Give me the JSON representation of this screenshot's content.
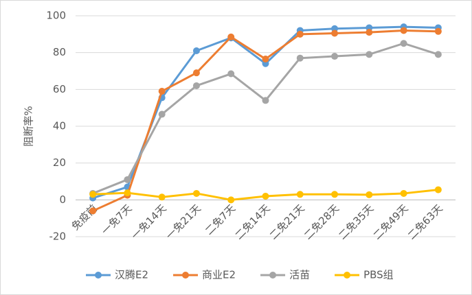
{
  "chart_data": {
    "type": "line",
    "y_label": "阻断率%",
    "categories": [
      "免疫前",
      "一免7天",
      "一免14天",
      "一免21天",
      "二免7天",
      "二免14天",
      "二免21天",
      "二免28天",
      "二免35天",
      "二免49天",
      "二免63天"
    ],
    "series": [
      {
        "name": "汉腾E2",
        "color": "#5b9bd5",
        "values": [
          1,
          7,
          55.5,
          81,
          88,
          74,
          92,
          93,
          93.5,
          94,
          93.5
        ]
      },
      {
        "name": "商业E2",
        "color": "#ed7d31",
        "values": [
          -6,
          2.5,
          59,
          69,
          88.5,
          76.5,
          90,
          90.5,
          91,
          92,
          91.5
        ]
      },
      {
        "name": "活苗",
        "color": "#a5a5a5",
        "values": [
          3.5,
          11,
          46.5,
          62,
          68.5,
          54,
          77,
          78,
          79,
          85,
          79
        ]
      },
      {
        "name": "PBS组",
        "color": "#ffc000",
        "values": [
          3,
          3.8,
          1.5,
          3.5,
          0,
          2,
          3,
          3,
          2.8,
          3.5,
          5.5
        ]
      }
    ],
    "ylim": [
      -20,
      100
    ],
    "yticks": [
      -20,
      0,
      20,
      40,
      60,
      80,
      100
    ],
    "grid": true,
    "legend": "bottom"
  }
}
